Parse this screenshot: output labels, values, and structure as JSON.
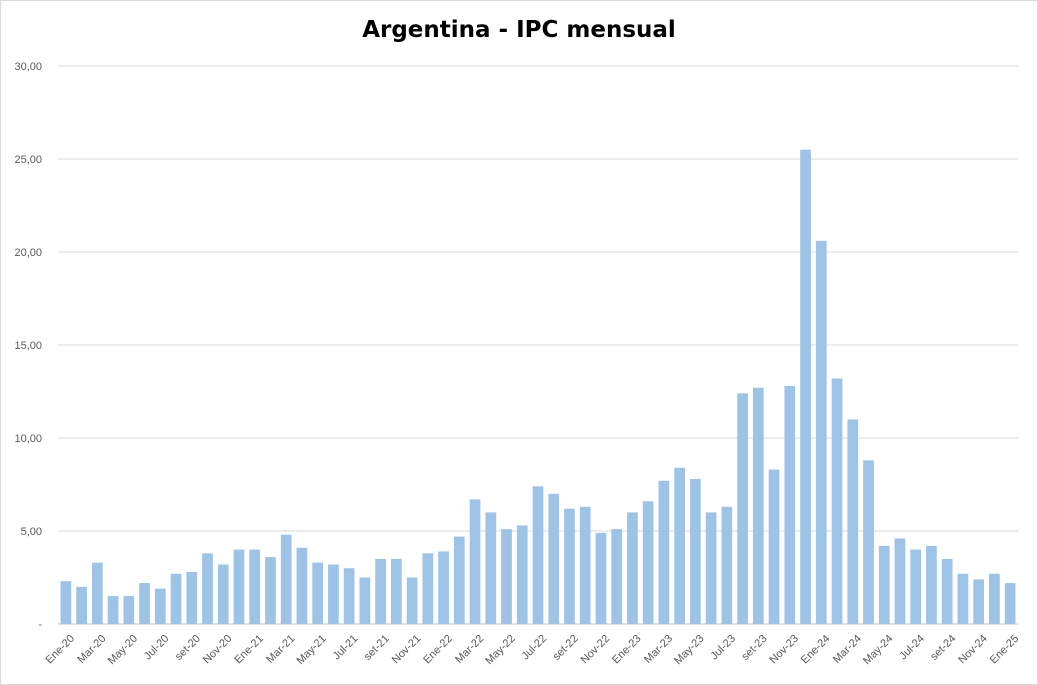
{
  "chart_data": {
    "type": "bar",
    "title": "Argentina - IPC mensual",
    "xlabel": "",
    "ylabel": "",
    "ylim": [
      0,
      30
    ],
    "y_ticks": [
      "-",
      "5,00",
      "10,00",
      "15,00",
      "20,00",
      "25,00",
      "30,00"
    ],
    "y_tick_values": [
      0,
      5,
      10,
      15,
      20,
      25,
      30
    ],
    "grid": "horizontal",
    "legend": "none",
    "bar_color": "#9dc3e6",
    "categories": [
      "Ene-20",
      "Feb-20",
      "Mar-20",
      "Abr-20",
      "May-20",
      "Jun-20",
      "Jul-20",
      "Ago-20",
      "set-20",
      "Oct-20",
      "Nov-20",
      "Dic-20",
      "Ene-21",
      "Feb-21",
      "Mar-21",
      "Abr-21",
      "May-21",
      "Jun-21",
      "Jul-21",
      "Ago-21",
      "set-21",
      "Oct-21",
      "Nov-21",
      "Dic-21",
      "Ene-22",
      "Feb-22",
      "Mar-22",
      "Abr-22",
      "May-22",
      "Jun-22",
      "Jul-22",
      "Ago-22",
      "set-22",
      "Oct-22",
      "Nov-22",
      "Dic-22",
      "Ene-23",
      "Feb-23",
      "Mar-23",
      "Abr-23",
      "May-23",
      "Jun-23",
      "Jul-23",
      "Ago-23",
      "set-23",
      "Oct-23",
      "Nov-23",
      "Dic-23",
      "Ene-24",
      "Feb-24",
      "Mar-24",
      "Abr-24",
      "May-24",
      "Jun-24",
      "Jul-24",
      "Ago-24",
      "set-24",
      "Oct-24",
      "Nov-24",
      "Dic-24",
      "Ene-25"
    ],
    "shown_x_labels": [
      "Ene-20",
      "Mar-20",
      "May-20",
      "Jul-20",
      "set-20",
      "Nov-20",
      "Ene-21",
      "Mar-21",
      "May-21",
      "Jul-21",
      "set-21",
      "Nov-21",
      "Ene-22",
      "Mar-22",
      "May-22",
      "Jul-22",
      "set-22",
      "Nov-22",
      "Ene-23",
      "Mar-23",
      "May-23",
      "Jul-23",
      "set-23",
      "Nov-23",
      "Ene-24",
      "Mar-24",
      "May-24",
      "Jul-24",
      "set-24",
      "Nov-24",
      "Ene-25"
    ],
    "values": [
      2.3,
      2.0,
      3.3,
      1.5,
      1.5,
      2.2,
      1.9,
      2.7,
      2.8,
      3.8,
      3.2,
      4.0,
      4.0,
      3.6,
      4.8,
      4.1,
      3.3,
      3.2,
      3.0,
      2.5,
      3.5,
      3.5,
      2.5,
      3.8,
      3.9,
      4.7,
      6.7,
      6.0,
      5.1,
      5.3,
      7.4,
      7.0,
      6.2,
      6.3,
      4.9,
      5.1,
      6.0,
      6.6,
      7.7,
      8.4,
      7.8,
      6.0,
      6.3,
      12.4,
      12.7,
      8.3,
      12.8,
      25.5,
      20.6,
      13.2,
      11.0,
      8.8,
      4.2,
      4.6,
      4.0,
      4.2,
      3.5,
      2.7,
      2.4,
      2.7,
      2.2
    ]
  }
}
